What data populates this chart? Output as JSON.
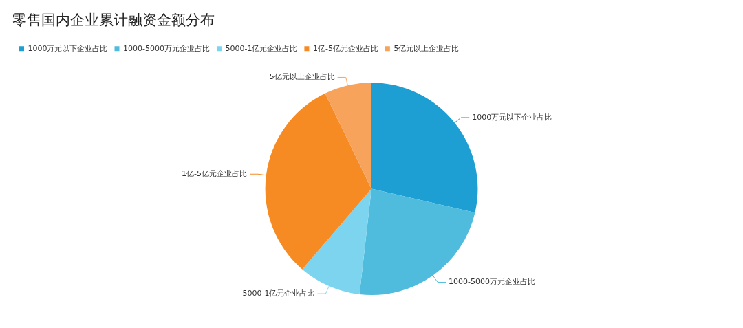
{
  "chart_data": {
    "type": "pie",
    "title": "零售国内企业累计融资金额分布",
    "categories": [
      "1000万元以下企业占比",
      "1000-5000万元企业占比",
      "5000-1亿元企业占比",
      "1亿-5亿元企业占比",
      "5亿元以上企业占比"
    ],
    "values": [
      28.6,
      23.2,
      9.5,
      31.5,
      7.2
    ],
    "colors": [
      "#1e9fd4",
      "#4fbbdd",
      "#7dd4ef",
      "#f68b23",
      "#f7a35c"
    ],
    "legend": "top left"
  }
}
